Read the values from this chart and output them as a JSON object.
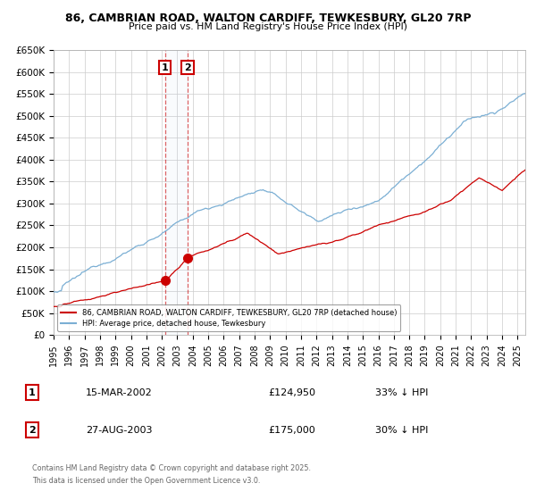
{
  "title1": "86, CAMBRIAN ROAD, WALTON CARDIFF, TEWKESBURY, GL20 7RP",
  "title2": "Price paid vs. HM Land Registry's House Price Index (HPI)",
  "ylim": [
    0,
    650000
  ],
  "yticks": [
    0,
    50000,
    100000,
    150000,
    200000,
    250000,
    300000,
    350000,
    400000,
    450000,
    500000,
    550000,
    600000,
    650000
  ],
  "ytick_labels": [
    "£0",
    "£50K",
    "£100K",
    "£150K",
    "£200K",
    "£250K",
    "£300K",
    "£350K",
    "£400K",
    "£450K",
    "£500K",
    "£550K",
    "£600K",
    "£650K"
  ],
  "xlim_min": 1995,
  "xlim_max": 2025.5,
  "transaction1_date": 2002.205,
  "transaction1_price": 124950,
  "transaction2_date": 2003.66,
  "transaction2_price": 175000,
  "hpi_color": "#7bafd4",
  "property_color": "#cc0000",
  "grid_color": "#cccccc",
  "background_color": "#ffffff",
  "legend_property": "86, CAMBRIAN ROAD, WALTON CARDIFF, TEWKESBURY, GL20 7RP (detached house)",
  "legend_hpi": "HPI: Average price, detached house, Tewkesbury",
  "footer_line1": "Contains HM Land Registry data © Crown copyright and database right 2025.",
  "footer_line2": "This data is licensed under the Open Government Licence v3.0.",
  "table_row1": [
    "1",
    "15-MAR-2002",
    "£124,950",
    "33% ↓ HPI"
  ],
  "table_row2": [
    "2",
    "27-AUG-2003",
    "£175,000",
    "30% ↓ HPI"
  ],
  "hpi_seed": 12345,
  "prop_seed": 67890
}
